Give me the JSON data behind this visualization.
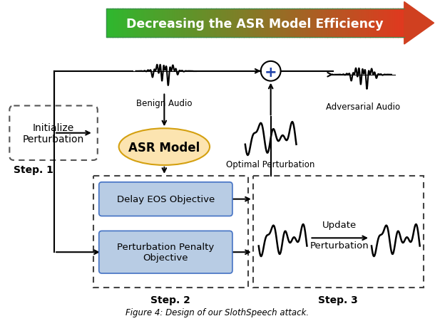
{
  "title": "Decreasing the ASR Model Efficiency",
  "bg_color": "#ffffff",
  "box_blue_fill": "#b8cce4",
  "box_blue_edge": "#4472c4",
  "dashed_box_edge": "#444444",
  "ellipse_fill": "#fce4b0",
  "ellipse_edge": "#d4a010",
  "step1_label": "Step. 1",
  "step2_label": "Step. 2",
  "step3_label": "Step. 3",
  "init_pert_label": "Initialize\nPerturbation",
  "asr_model_label": "ASR Model",
  "delay_eos_label": "Delay EOS Objective",
  "pert_penalty_label": "Perturbation Penalty\nObjective",
  "benign_audio_label": "Benign Audio",
  "adversarial_audio_label": "Adversarial Audio",
  "optimal_pert_label": "Optimal Perturbation",
  "update_label": "Update",
  "perturbation_label": "Perturbation",
  "caption": "Figure 4: Design of our SlothSpeech attack."
}
